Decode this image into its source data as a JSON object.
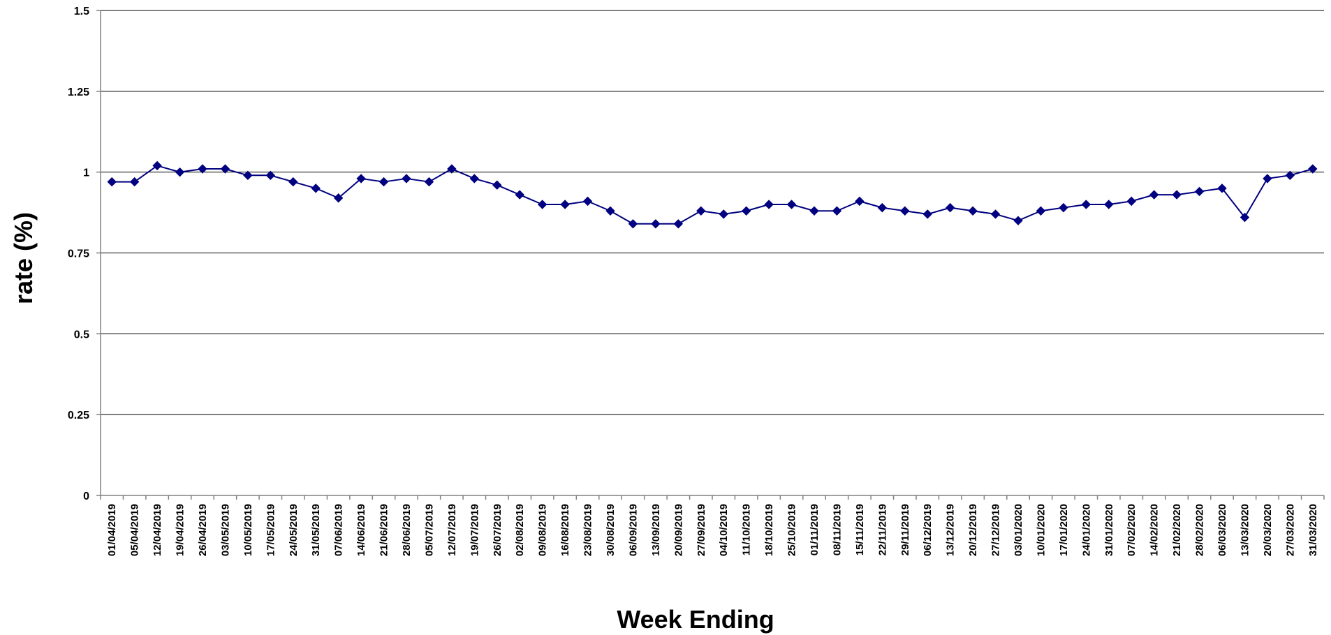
{
  "chart_data": {
    "type": "line",
    "title": "",
    "xlabel": "Week Ending",
    "ylabel": "rate (%)",
    "ylim": [
      0,
      1.5
    ],
    "yticks": [
      0,
      0.25,
      0.5,
      0.75,
      1,
      1.25,
      1.5
    ],
    "ytick_labels": [
      "0",
      "0.25",
      "0.5",
      "0.75",
      "1",
      "1.25",
      "1.5"
    ],
    "grid": "horizontal",
    "legend": "none",
    "colors": {
      "line": "#000080",
      "marker": "#000080",
      "grid": "#000000",
      "axis": "#808080"
    },
    "categories": [
      "01/04/2019",
      "05/04/2019",
      "12/04/2019",
      "19/04/2019",
      "26/04/2019",
      "03/05/2019",
      "10/05/2019",
      "17/05/2019",
      "24/05/2019",
      "31/05/2019",
      "07/06/2019",
      "14/06/2019",
      "21/06/2019",
      "28/06/2019",
      "05/07/2019",
      "12/07/2019",
      "19/07/2019",
      "26/07/2019",
      "02/08/2019",
      "09/08/2019",
      "16/08/2019",
      "23/08/2019",
      "30/08/2019",
      "06/09/2019",
      "13/09/2019",
      "20/09/2019",
      "27/09/2019",
      "04/10/2019",
      "11/10/2019",
      "18/10/2019",
      "25/10/2019",
      "01/11/2019",
      "08/11/2019",
      "15/11/2019",
      "22/11/2019",
      "29/11/2019",
      "06/12/2019",
      "13/12/2019",
      "20/12/2019",
      "27/12/2019",
      "03/01/2020",
      "10/01/2020",
      "17/01/2020",
      "24/01/2020",
      "31/01/2020",
      "07/02/2020",
      "14/02/2020",
      "21/02/2020",
      "28/02/2020",
      "06/03/2020",
      "13/03/2020",
      "20/03/2020",
      "27/03/2020",
      "31/03/2020"
    ],
    "series": [
      {
        "values": [
          0.97,
          0.97,
          1.02,
          1.0,
          1.01,
          1.01,
          0.99,
          0.99,
          0.97,
          0.95,
          0.92,
          0.98,
          0.97,
          0.98,
          0.97,
          1.01,
          0.98,
          0.96,
          0.93,
          0.9,
          0.9,
          0.91,
          0.88,
          0.84,
          0.84,
          0.84,
          0.88,
          0.87,
          0.88,
          0.9,
          0.9,
          0.88,
          0.88,
          0.91,
          0.89,
          0.88,
          0.87,
          0.89,
          0.88,
          0.87,
          0.85,
          0.88,
          0.89,
          0.9,
          0.9,
          0.91,
          0.93,
          0.93,
          0.94,
          0.95,
          0.86,
          0.98,
          0.99,
          1.01
        ]
      }
    ]
  }
}
